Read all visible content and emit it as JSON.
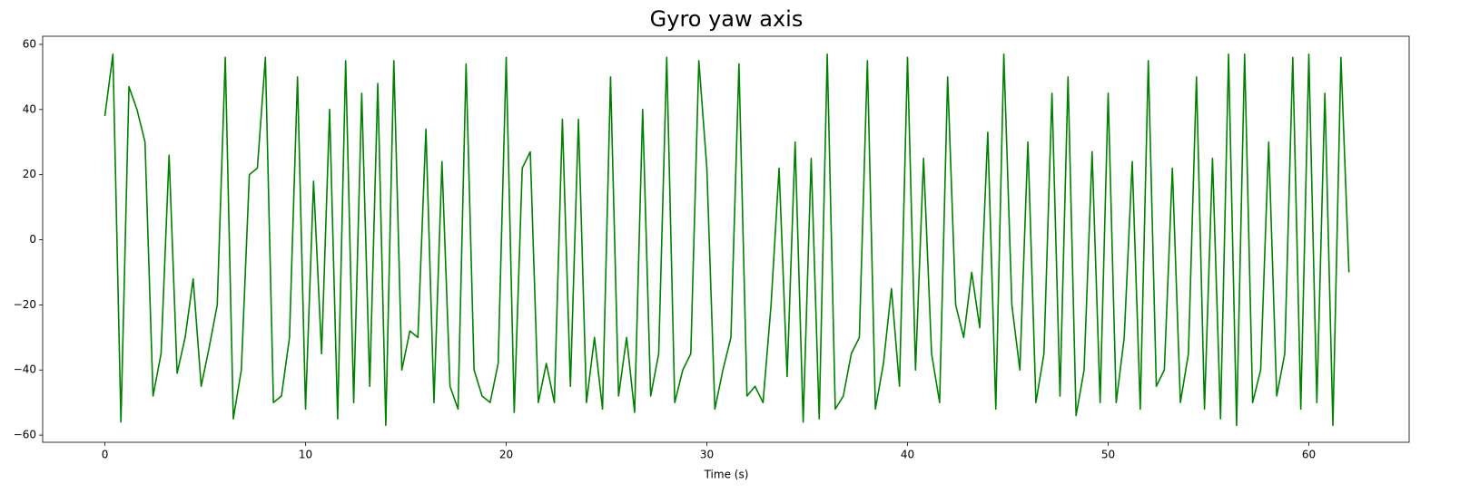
{
  "chart_data": {
    "type": "line",
    "title": "Gyro yaw axis",
    "x_label": "Time (s)",
    "xlim": [
      -3.1,
      65
    ],
    "ylim": [
      -62.2,
      62.5
    ],
    "xticks": [
      0,
      10,
      20,
      30,
      40,
      50,
      60
    ],
    "yticks": [
      {
        "value": -60,
        "label": "−60"
      },
      {
        "value": -40,
        "label": "−40"
      },
      {
        "value": -20,
        "label": "−20"
      },
      0,
      20,
      40,
      60
    ],
    "x": [
      0,
      0.4,
      0.8,
      1.2,
      1.6,
      2,
      2.4,
      2.8,
      3.2,
      3.6,
      4,
      4.4,
      4.8,
      5.2,
      5.6,
      6,
      6.4,
      6.8,
      7.2,
      7.6,
      8,
      8.4,
      8.8,
      9.2,
      9.6,
      10,
      10.4,
      10.8,
      11.2,
      11.6,
      12,
      12.4,
      12.8,
      13.2,
      13.6,
      14,
      14.4,
      14.8,
      15.2,
      15.6,
      16,
      16.4,
      16.8,
      17.2,
      17.6,
      18,
      18.4,
      18.8,
      19.2,
      19.6,
      20,
      20.4,
      20.8,
      21.2,
      21.6,
      22,
      22.4,
      22.8,
      23.2,
      23.6,
      24,
      24.4,
      24.8,
      25.2,
      25.6,
      26,
      26.4,
      26.8,
      27.2,
      27.6,
      28,
      28.4,
      28.8,
      29.2,
      29.6,
      30,
      30.4,
      30.8,
      31.2,
      31.6,
      32,
      32.4,
      32.8,
      33.2,
      33.6,
      34,
      34.4,
      34.8,
      35.2,
      35.6,
      36,
      36.4,
      36.8,
      37.2,
      37.6,
      38,
      38.4,
      38.8,
      39.2,
      39.6,
      40,
      40.4,
      40.8,
      41.2,
      41.6,
      42,
      42.4,
      42.8,
      43.2,
      43.6,
      44,
      44.4,
      44.8,
      45.2,
      45.6,
      46,
      46.4,
      46.8,
      47.2,
      47.6,
      48,
      48.4,
      48.8,
      49.2,
      49.6,
      50,
      50.4,
      50.8,
      51.2,
      51.6,
      52,
      52.4,
      52.8,
      53.2,
      53.6,
      54,
      54.4,
      54.8,
      55.2,
      55.6,
      56,
      56.4,
      56.8,
      57.2,
      57.6,
      58,
      58.4,
      58.8,
      59.2,
      59.6,
      60,
      60.4,
      60.8,
      61.2,
      61.6,
      62
    ],
    "series": [
      {
        "color": "#008000",
        "values": [
          38,
          57,
          -56,
          47,
          40,
          30,
          -48,
          -35,
          26,
          -41,
          -30,
          -12,
          -45,
          -33,
          -20,
          56,
          -55,
          -40,
          20,
          22,
          56,
          -50,
          -48,
          -30,
          50,
          -52,
          18,
          -35,
          40,
          -55,
          55,
          -50,
          45,
          -45,
          48,
          -57,
          55,
          -40,
          -28,
          -30,
          34,
          -50,
          24,
          -45,
          -52,
          54,
          -40,
          -48,
          -50,
          -38,
          56,
          -53,
          22,
          27,
          -50,
          -38,
          -50,
          37,
          -45,
          37,
          -50,
          -30,
          -52,
          50,
          -48,
          -30,
          -53,
          40,
          -48,
          -35,
          56,
          -50,
          -40,
          -35,
          55,
          22,
          -52,
          -40,
          -30,
          54,
          -48,
          -45,
          -50,
          -20,
          22,
          -42,
          30,
          -56,
          25,
          -55,
          57,
          -52,
          -48,
          -35,
          -30,
          55,
          -52,
          -38,
          -15,
          -45,
          56,
          -40,
          25,
          -35,
          -50,
          50,
          -20,
          -30,
          -10,
          -27,
          33,
          -52,
          57,
          -20,
          -40,
          30,
          -50,
          -35,
          45,
          -48,
          50,
          -54,
          -40,
          27,
          -50,
          45,
          -50,
          -30,
          24,
          -52,
          55,
          -45,
          -40,
          22,
          -50,
          -35,
          50,
          -52,
          25,
          -55,
          57,
          -57,
          57,
          -50,
          -40,
          30,
          -48,
          -35,
          56,
          -52,
          57,
          -50,
          45,
          -57,
          56,
          -10
        ]
      }
    ]
  }
}
